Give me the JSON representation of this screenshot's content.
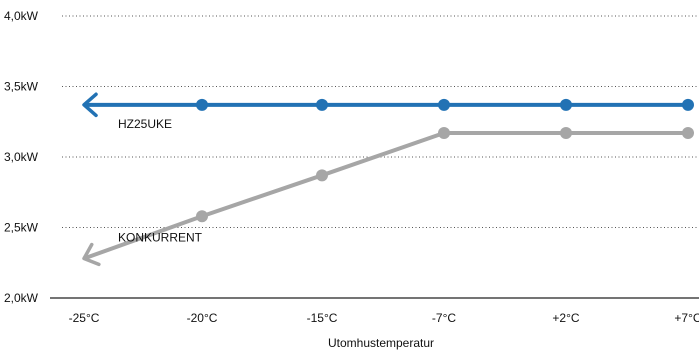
{
  "chart_data": {
    "type": "line",
    "xlabel": "Utomhustemperatur",
    "ylabel": "",
    "categories": [
      "-25°C",
      "-20°C",
      "-15°C",
      "-7°C",
      "+2°C",
      "+7°C"
    ],
    "y_ticks": [
      "4,0kW",
      "3,5kW",
      "3,0kW",
      "2,5kW",
      "2,0kW"
    ],
    "ylim": [
      2.0,
      4.0
    ],
    "grid": true,
    "series": [
      {
        "name": "HZ25UKE",
        "color": "#2272b4",
        "values": [
          3.37,
          3.37,
          3.37,
          3.37,
          3.37,
          3.37
        ],
        "markers_from_index": 1
      },
      {
        "name": "KONKURRENT",
        "color": "#a6a6a6",
        "values": [
          2.28,
          2.58,
          2.87,
          3.17,
          3.17,
          3.17
        ],
        "markers_from_index": 1
      }
    ]
  }
}
